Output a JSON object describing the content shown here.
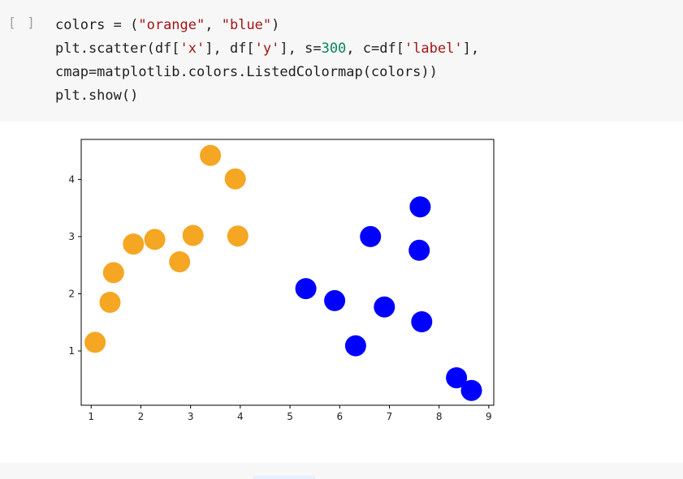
{
  "cell": {
    "run_indicator": "[ ]",
    "code_lines": [
      [
        {
          "t": "colors = (",
          "c": ""
        },
        {
          "t": "\"orange\"",
          "c": "str"
        },
        {
          "t": ", ",
          "c": ""
        },
        {
          "t": "\"blue\"",
          "c": "str"
        },
        {
          "t": ")",
          "c": ""
        }
      ],
      [
        {
          "t": "plt.scatter(df[",
          "c": ""
        },
        {
          "t": "'x'",
          "c": "str"
        },
        {
          "t": "], df[",
          "c": ""
        },
        {
          "t": "'y'",
          "c": "str"
        },
        {
          "t": "], s=",
          "c": ""
        },
        {
          "t": "300",
          "c": "num"
        },
        {
          "t": ", c=df[",
          "c": ""
        },
        {
          "t": "'label'",
          "c": "str"
        },
        {
          "t": "],",
          "c": ""
        }
      ],
      [
        {
          "t": "cmap=matplotlib.colors.ListedColormap(colors))",
          "c": ""
        }
      ],
      [
        {
          "t": "plt.show()",
          "c": ""
        }
      ]
    ]
  },
  "colors": {
    "orange": "#f5a623",
    "blue": "#0000ff",
    "cell_bg": "#f7f7f7",
    "string": "#a31515",
    "number": "#098658"
  },
  "chart_data": {
    "type": "scatter",
    "title": "",
    "xlabel": "",
    "ylabel": "",
    "xlim": [
      0.8,
      9.1
    ],
    "ylim": [
      0.05,
      4.7
    ],
    "xticks": [
      1,
      2,
      3,
      4,
      5,
      6,
      7,
      8,
      9
    ],
    "yticks": [
      1,
      2,
      3,
      4
    ],
    "grid": false,
    "legend": "none",
    "marker_size": 300,
    "series": [
      {
        "color": "orange",
        "points": [
          [
            1.08,
            1.15
          ],
          [
            1.38,
            1.85
          ],
          [
            1.45,
            2.37
          ],
          [
            1.85,
            2.87
          ],
          [
            2.28,
            2.95
          ],
          [
            2.78,
            2.56
          ],
          [
            3.05,
            3.02
          ],
          [
            3.4,
            4.42
          ],
          [
            3.9,
            4.01
          ],
          [
            3.95,
            3.01
          ]
        ]
      },
      {
        "color": "blue",
        "points": [
          [
            5.32,
            2.09
          ],
          [
            5.9,
            1.88
          ],
          [
            6.32,
            1.09
          ],
          [
            6.62,
            3.0
          ],
          [
            6.9,
            1.77
          ],
          [
            7.62,
            3.52
          ],
          [
            7.6,
            2.76
          ],
          [
            7.65,
            1.51
          ],
          [
            8.35,
            0.53
          ],
          [
            8.65,
            0.31
          ]
        ]
      }
    ]
  }
}
